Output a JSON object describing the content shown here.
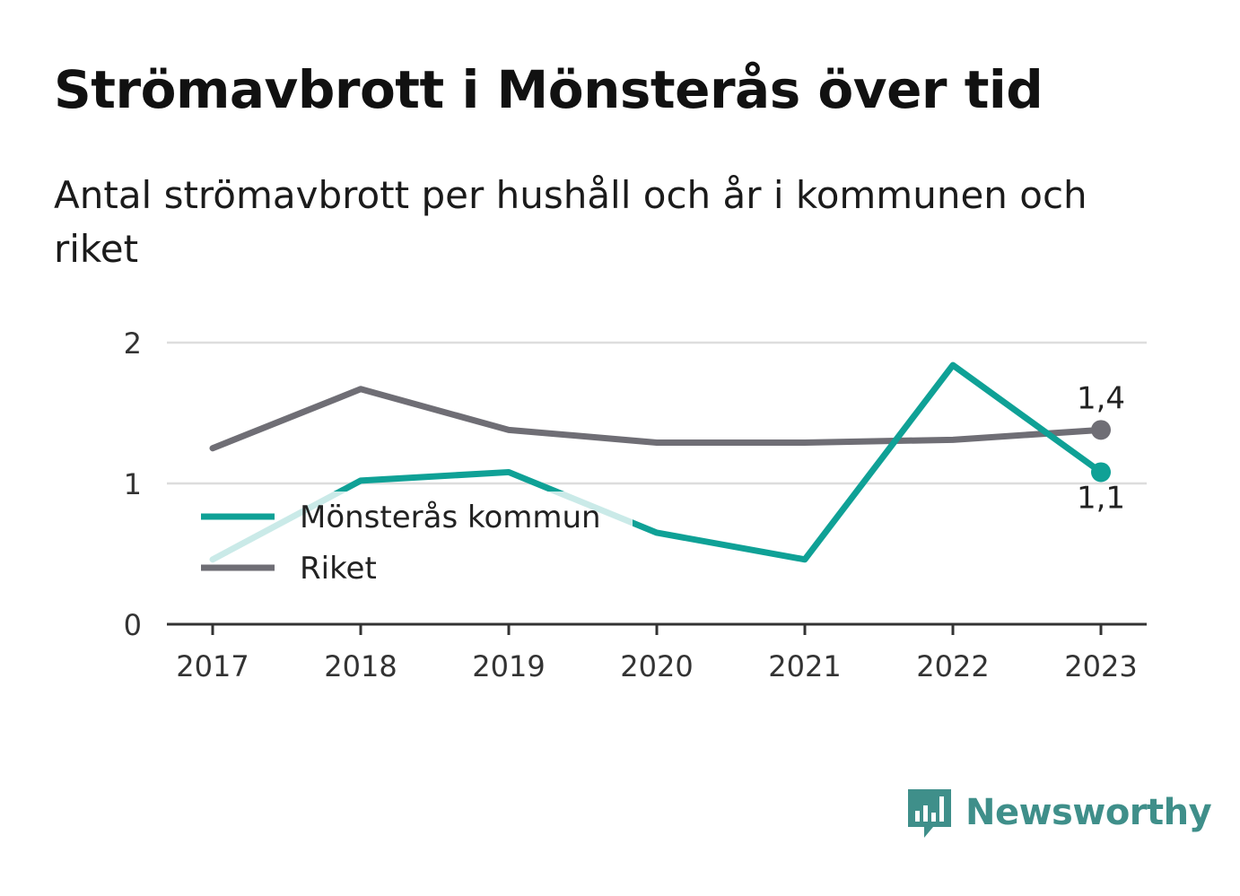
{
  "title": "Strömavbrott i Mönsterås över tid",
  "subtitle": "Antal strömavbrott per hushåll och år i kommunen och riket",
  "brand": {
    "name": "Newsworthy",
    "icon": "bar-chart-speech-bubble-icon",
    "color": "#3f8f8a"
  },
  "chart_data": {
    "type": "line",
    "x": [
      "2017",
      "2018",
      "2019",
      "2020",
      "2021",
      "2022",
      "2023"
    ],
    "yticks": [
      "0",
      "1",
      "2"
    ],
    "ylim": [
      0,
      2
    ],
    "grid": true,
    "legend_position": "center-left",
    "series": [
      {
        "name": "Mönsterås kommun",
        "color": "#0fa196",
        "values": [
          0.46,
          1.02,
          1.08,
          0.65,
          0.46,
          1.84,
          1.08
        ],
        "end_label": "1,1"
      },
      {
        "name": "Riket",
        "color": "#6f6e75",
        "values": [
          1.25,
          1.67,
          1.38,
          1.29,
          1.29,
          1.31,
          1.38
        ],
        "end_label": "1,4"
      }
    ]
  }
}
